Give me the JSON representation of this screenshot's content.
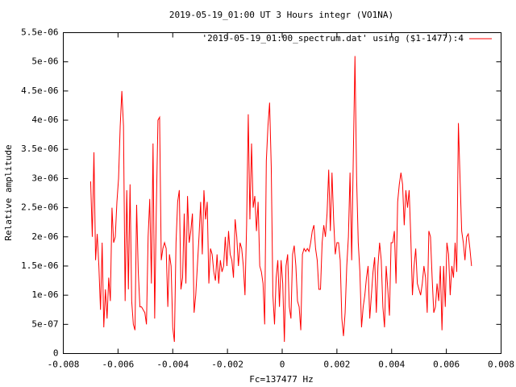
{
  "chart_data": {
    "type": "line",
    "title": "2019-05-19_01:00 UT 3 Hours integr (VO1NA)",
    "x_label": "Fc=137477 Hz",
    "y_label": "Relative amplitude",
    "xlim": [
      -0.008,
      0.008
    ],
    "xticks": [
      -0.008,
      -0.006,
      -0.004,
      -0.002,
      0,
      0.002,
      0.004,
      0.006,
      0.008
    ],
    "ylim": [
      0,
      5.5e-06
    ],
    "yticks": [
      0,
      {
        "value": 5e-07,
        "label": "5e-07"
      },
      {
        "value": 1e-06,
        "label": "1e-06"
      },
      {
        "value": 1.5e-06,
        "label": "1.5e-06"
      },
      {
        "value": 2e-06,
        "label": "2e-06"
      },
      {
        "value": 2.5e-06,
        "label": "2.5e-06"
      },
      {
        "value": 3e-06,
        "label": "3e-06"
      },
      {
        "value": 3.5e-06,
        "label": "3.5e-06"
      },
      {
        "value": 4e-06,
        "label": "4e-06"
      },
      {
        "value": 4.5e-06,
        "label": "4.5e-06"
      },
      {
        "value": 5e-06,
        "label": "5e-06"
      },
      {
        "value": 5.5e-06,
        "label": "5.5e-06"
      }
    ],
    "legend": "top-right",
    "x": [
      -0.007,
      -0.00694,
      -0.00688,
      -0.00682,
      -0.00676,
      -0.0067,
      -0.00664,
      -0.00658,
      -0.00652,
      -0.00646,
      -0.0064,
      -0.00634,
      -0.00628,
      -0.00622,
      -0.00616,
      -0.0061,
      -0.00604,
      -0.00598,
      -0.00592,
      -0.00586,
      -0.0058,
      -0.00574,
      -0.00568,
      -0.00562,
      -0.00556,
      -0.0055,
      -0.00544,
      -0.00538,
      -0.00532,
      -0.00526,
      -0.0052,
      -0.00514,
      -0.00508,
      -0.00502,
      -0.00496,
      -0.0049,
      -0.00484,
      -0.00478,
      -0.00472,
      -0.00466,
      -0.0046,
      -0.00454,
      -0.00448,
      -0.00442,
      -0.00436,
      -0.0043,
      -0.00424,
      -0.00418,
      -0.00412,
      -0.00406,
      -0.004,
      -0.00394,
      -0.00388,
      -0.00382,
      -0.00376,
      -0.0037,
      -0.00364,
      -0.00358,
      -0.00352,
      -0.00346,
      -0.0034,
      -0.00334,
      -0.00328,
      -0.00322,
      -0.00316,
      -0.0031,
      -0.00304,
      -0.00298,
      -0.00292,
      -0.00286,
      -0.0028,
      -0.00274,
      -0.00268,
      -0.00262,
      -0.00256,
      -0.0025,
      -0.00244,
      -0.00238,
      -0.00232,
      -0.00226,
      -0.0022,
      -0.00214,
      -0.00208,
      -0.00202,
      -0.00196,
      -0.0019,
      -0.00184,
      -0.00178,
      -0.00172,
      -0.00166,
      -0.0016,
      -0.00154,
      -0.00148,
      -0.00142,
      -0.00136,
      -0.0013,
      -0.00124,
      -0.00118,
      -0.00112,
      -0.00106,
      -0.001,
      -0.00094,
      -0.00088,
      -0.00082,
      -0.00076,
      -0.0007,
      -0.00064,
      -0.00058,
      -0.00052,
      -0.00046,
      -0.0004,
      -0.00034,
      -0.00028,
      -0.00022,
      -0.00016,
      -0.0001,
      -4e-05,
      2e-05,
      8e-05,
      0.00014,
      0.0002,
      0.00026,
      0.00032,
      0.00038,
      0.00044,
      0.0005,
      0.00056,
      0.00062,
      0.00068,
      0.00074,
      0.0008,
      0.00086,
      0.00092,
      0.00098,
      0.00104,
      0.0011,
      0.00116,
      0.00122,
      0.00128,
      0.00134,
      0.0014,
      0.00146,
      0.00152,
      0.00158,
      0.00164,
      0.0017,
      0.00176,
      0.00182,
      0.00188,
      0.00194,
      0.002,
      0.00206,
      0.00212,
      0.00218,
      0.00224,
      0.0023,
      0.00236,
      0.00242,
      0.00248,
      0.00254,
      0.0026,
      0.00266,
      0.00272,
      0.00278,
      0.00284,
      0.0029,
      0.00296,
      0.00302,
      0.00308,
      0.00314,
      0.0032,
      0.00326,
      0.00332,
      0.00338,
      0.00344,
      0.0035,
      0.00356,
      0.00362,
      0.00368,
      0.00374,
      0.0038,
      0.00386,
      0.00392,
      0.00398,
      0.00404,
      0.0041,
      0.00416,
      0.00422,
      0.00428,
      0.00434,
      0.0044,
      0.00446,
      0.00452,
      0.00458,
      0.00464,
      0.0047,
      0.00476,
      0.00482,
      0.00488,
      0.00494,
      0.005,
      0.00506,
      0.00512,
      0.00518,
      0.00524,
      0.0053,
      0.00536,
      0.00542,
      0.00548,
      0.00554,
      0.0056,
      0.00566,
      0.00572,
      0.00578,
      0.00584,
      0.0059,
      0.00596,
      0.00602,
      0.00608,
      0.00614,
      0.0062,
      0.00626,
      0.00632,
      0.00638,
      0.00644,
      0.0065,
      0.00656,
      0.00662,
      0.00668,
      0.00674,
      0.0068,
      0.00686,
      0.00692
    ],
    "series": [
      {
        "name": "'2019-05-19_01:00_spectrum.dat' using ($1-1477):4",
        "color": "#ff0000",
        "values": [
          2.95e-06,
          2e-06,
          3.45e-06,
          1.6e-06,
          2.05e-06,
          1.5e-06,
          7.5e-07,
          1.9e-06,
          4.5e-07,
          1.1e-06,
          6e-07,
          1.3e-06,
          9e-07,
          2.5e-06,
          1.9e-06,
          2e-06,
          2.6e-06,
          3e-06,
          3.9e-06,
          4.5e-06,
          3.9e-06,
          9e-07,
          2.8e-06,
          1.1e-06,
          2.9e-06,
          9e-07,
          5e-07,
          4e-07,
          2.55e-06,
          1.4e-06,
          8e-07,
          8e-07,
          7.5e-07,
          7e-07,
          5e-07,
          2e-06,
          2.65e-06,
          1.2e-06,
          3.6e-06,
          6e-07,
          2.5e-06,
          4e-06,
          4.05e-06,
          1.6e-06,
          1.8e-06,
          1.9e-06,
          1.8e-06,
          8e-07,
          1.7e-06,
          1.5e-06,
          4.5e-07,
          2e-07,
          1.9e-06,
          2.6e-06,
          2.8e-06,
          1.1e-06,
          1.3e-06,
          2.4e-06,
          1.2e-06,
          2.7e-06,
          1.9e-06,
          2.1e-06,
          2.4e-06,
          7e-07,
          1e-06,
          1.5e-06,
          2e-06,
          2.6e-06,
          1.7e-06,
          2.8e-06,
          2.3e-06,
          2.6e-06,
          1.2e-06,
          1.8e-06,
          1.7e-06,
          1.4e-06,
          1.25e-06,
          1.7e-06,
          1.2e-06,
          1.6e-06,
          1.4e-06,
          1.5e-06,
          2e-06,
          1.5e-06,
          2.1e-06,
          1.7e-06,
          1.6e-06,
          1.3e-06,
          2.3e-06,
          2e-06,
          1.5e-06,
          1.9e-06,
          1.8e-06,
          1.5e-06,
          1e-06,
          2.2e-06,
          4.1e-06,
          2.3e-06,
          3.6e-06,
          2.5e-06,
          2.7e-06,
          2.1e-06,
          2.6e-06,
          1.5e-06,
          1.4e-06,
          1.2e-06,
          5e-07,
          3.3e-06,
          3.9e-06,
          4.3e-06,
          3.2e-06,
          1e-06,
          5e-07,
          1.3e-06,
          1.6e-06,
          8e-07,
          1.6e-06,
          1.2e-06,
          2e-07,
          1.5e-06,
          1.7e-06,
          8e-07,
          6e-07,
          1.7e-06,
          1.85e-06,
          1.5e-06,
          9e-07,
          8e-07,
          4e-07,
          1.7e-06,
          1.8e-06,
          1.75e-06,
          1.8e-06,
          1.75e-06,
          1.9e-06,
          2.1e-06,
          2.2e-06,
          1.8e-06,
          1.6e-06,
          1.1e-06,
          1.1e-06,
          1.9e-06,
          2.2e-06,
          2e-06,
          2.4e-06,
          3.15e-06,
          2.1e-06,
          3.1e-06,
          2.3e-06,
          1.7e-06,
          1.9e-06,
          1.9e-06,
          1.6e-06,
          6e-07,
          3e-07,
          7e-07,
          1.5e-06,
          2e-06,
          3.1e-06,
          1.6e-06,
          3.4e-06,
          5.1e-06,
          3e-06,
          1.9e-06,
          1.4e-06,
          4.5e-07,
          8e-07,
          1e-06,
          1.3e-06,
          1.5e-06,
          6e-07,
          1e-06,
          1.4e-06,
          1.65e-06,
          7e-07,
          1.5e-06,
          1.9e-06,
          1.6e-06,
          8e-07,
          4.5e-07,
          1.5e-06,
          1.1e-06,
          6.5e-07,
          1.9e-06,
          1.9e-06,
          2.1e-06,
          1.2e-06,
          2.6e-06,
          2.9e-06,
          3.1e-06,
          2.9e-06,
          2.2e-06,
          2.8e-06,
          2.5e-06,
          2.8e-06,
          2e-06,
          1e-06,
          1.5e-06,
          1.8e-06,
          1.2e-06,
          1.1e-06,
          1e-06,
          1.2e-06,
          1.5e-06,
          1.3e-06,
          7e-07,
          2.1e-06,
          2e-06,
          1.3e-06,
          7e-07,
          8e-07,
          1.2e-06,
          9e-07,
          1.5e-06,
          4e-07,
          1.5e-06,
          8e-07,
          1.9e-06,
          1.7e-06,
          1e-06,
          1.5e-06,
          1.3e-06,
          1.9e-06,
          1.4e-06,
          3.95e-06,
          3e-06,
          2.1e-06,
          1.9e-06,
          1.6e-06,
          2e-06,
          2.05e-06,
          1.8e-06,
          1.5e-06
        ]
      }
    ]
  }
}
